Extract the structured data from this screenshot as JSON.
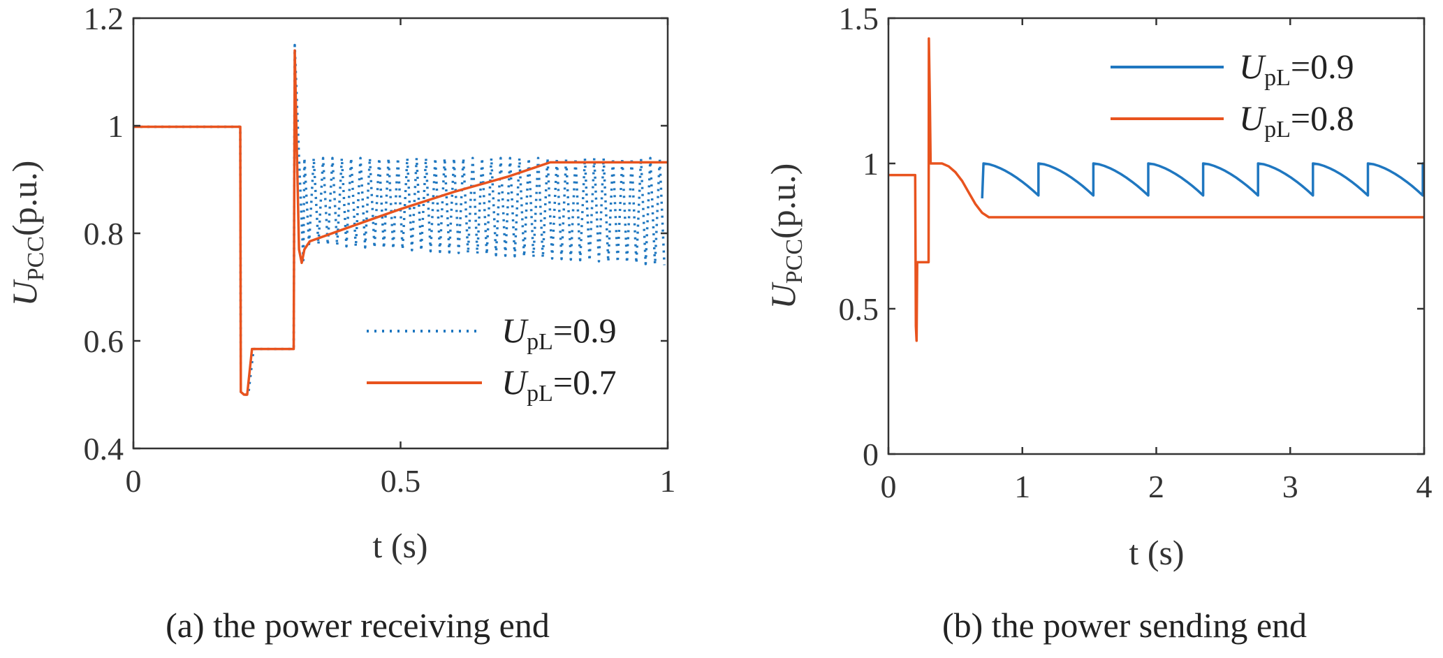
{
  "chart_data": [
    {
      "id": "a",
      "type": "line",
      "caption": "(a) the power receiving end",
      "xlabel": "t (s)",
      "ylabel_main": "U",
      "ylabel_sub": "PCC",
      "ylabel_unit": "(p.u.)",
      "xlim": [
        0,
        1
      ],
      "ylim": [
        0.4,
        1.2
      ],
      "xticks": [
        0,
        0.5,
        1
      ],
      "xtick_labels": [
        "0",
        "0.5",
        "1"
      ],
      "yticks": [
        0.4,
        0.6,
        0.8,
        1,
        1.2
      ],
      "ytick_labels": [
        "0.4",
        "0.6",
        "0.8",
        "1",
        "1.2"
      ],
      "legend_position": "bottom-right",
      "series": [
        {
          "name_main": "U",
          "name_sub": "pL",
          "name_value": "=0.9",
          "color": "#1f77c0",
          "style": "dotted",
          "points": [
            [
              0,
              0.998
            ],
            [
              0.2,
              0.998
            ],
            [
              0.201,
              0.505
            ],
            [
              0.208,
              0.5
            ],
            [
              0.215,
              0.5
            ],
            [
              0.225,
              0.585
            ],
            [
              0.3,
              0.585
            ],
            [
              0.302,
              1.15
            ],
            [
              0.31,
              0.94
            ],
            [
              0.318,
              0.75
            ]
          ],
          "oscillation": {
            "start": 0.32,
            "end": 1.0,
            "period": 0.0175,
            "upper": 0.94,
            "lower_start": 0.78,
            "lower_end": 0.74
          }
        },
        {
          "name_main": "U",
          "name_sub": "pL",
          "name_value": "=0.7",
          "color": "#e8531e",
          "style": "solid",
          "points": [
            [
              0,
              0.998
            ],
            [
              0.2,
              0.998
            ],
            [
              0.201,
              0.505
            ],
            [
              0.207,
              0.5
            ],
            [
              0.213,
              0.5
            ],
            [
              0.222,
              0.585
            ],
            [
              0.3,
              0.585
            ],
            [
              0.302,
              1.14
            ],
            [
              0.306,
              0.95
            ],
            [
              0.31,
              0.77
            ],
            [
              0.315,
              0.745
            ],
            [
              0.32,
              0.77
            ],
            [
              0.33,
              0.785
            ],
            [
              0.4,
              0.81
            ],
            [
              0.5,
              0.845
            ],
            [
              0.6,
              0.877
            ],
            [
              0.7,
              0.905
            ],
            [
              0.78,
              0.932
            ],
            [
              1.0,
              0.932
            ]
          ]
        }
      ]
    },
    {
      "id": "b",
      "type": "line",
      "caption": "(b) the power sending end",
      "xlabel": "t (s)",
      "ylabel_main": "U",
      "ylabel_sub": "PCC",
      "ylabel_unit": "(p.u.)",
      "xlim": [
        0,
        4
      ],
      "ylim": [
        0,
        1.5
      ],
      "xticks": [
        0,
        1,
        2,
        3,
        4
      ],
      "xtick_labels": [
        "0",
        "1",
        "2",
        "3",
        "4"
      ],
      "yticks": [
        0,
        0.5,
        1,
        1.5
      ],
      "ytick_labels": [
        "0",
        "0.5",
        "1",
        "1.5"
      ],
      "legend_position": "top-right",
      "series": [
        {
          "name_main": "U",
          "name_sub": "pL",
          "name_value": "=0.9",
          "color": "#1f77c0",
          "style": "solid",
          "points": [
            [
              0.7,
              0.88
            ],
            [
              0.71,
              1.0
            ]
          ],
          "sawtooth": {
            "start": 0.71,
            "end": 4.0,
            "period": 0.41,
            "top": 1.0,
            "bottom": 0.89
          }
        },
        {
          "name_main": "U",
          "name_sub": "pL",
          "name_value": "=0.8",
          "color": "#e8531e",
          "style": "solid",
          "points": [
            [
              0,
              0.96
            ],
            [
              0.2,
              0.96
            ],
            [
              0.205,
              0.44
            ],
            [
              0.21,
              0.39
            ],
            [
              0.215,
              0.66
            ],
            [
              0.3,
              0.66
            ],
            [
              0.302,
              1.43
            ],
            [
              0.31,
              1.2
            ],
            [
              0.315,
              1.0
            ],
            [
              0.4,
              1.0
            ],
            [
              0.45,
              0.99
            ],
            [
              0.5,
              0.97
            ],
            [
              0.55,
              0.94
            ],
            [
              0.6,
              0.9
            ],
            [
              0.65,
              0.86
            ],
            [
              0.7,
              0.83
            ],
            [
              0.75,
              0.815
            ],
            [
              4.0,
              0.815
            ]
          ]
        }
      ]
    }
  ]
}
